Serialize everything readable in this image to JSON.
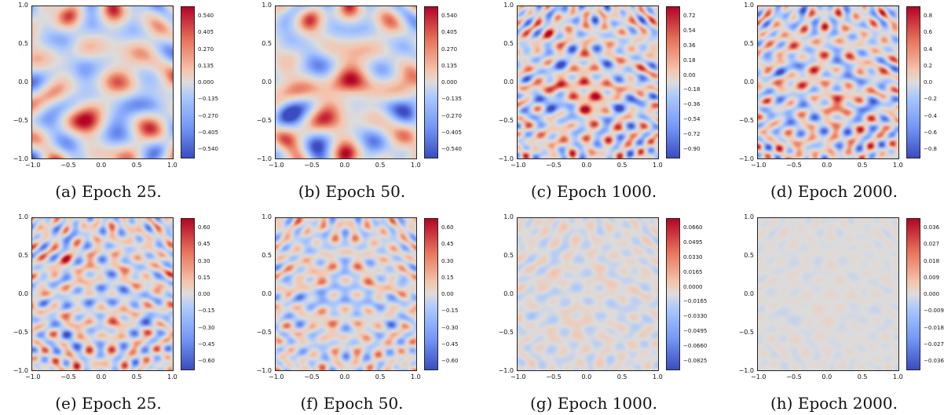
{
  "chart_data": [
    {
      "type": "heatmap",
      "caption": "(a) Epoch 25.",
      "xlim": [
        -1.0,
        1.0
      ],
      "ylim": [
        -1.0,
        1.0
      ],
      "xticks": [
        "−1.0",
        "−0.5",
        "0.0",
        "0.5",
        "1.0"
      ],
      "yticks": [
        "1.0",
        "0.5",
        "0.0",
        "−0.5",
        "−1.0"
      ],
      "colorbar_ticks": [
        "0.540",
        "0.405",
        "0.270",
        "0.135",
        "0.000",
        "−0.135",
        "−0.270",
        "−0.405",
        "−0.540"
      ],
      "colormap": "coolwarm",
      "intensity": 0.9
    },
    {
      "type": "heatmap",
      "caption": "(b) Epoch 50.",
      "xlim": [
        -1.0,
        1.0
      ],
      "ylim": [
        -1.0,
        1.0
      ],
      "xticks": [
        "−1.0",
        "−0.5",
        "0.0",
        "0.5",
        "1.0"
      ],
      "yticks": [
        "1.0",
        "0.5",
        "0.0",
        "−0.5",
        "−1.0"
      ],
      "colorbar_ticks": [
        "0.540",
        "0.405",
        "0.270",
        "0.135",
        "0.000",
        "−0.135",
        "−0.270",
        "−0.405",
        "−0.540"
      ],
      "colormap": "coolwarm",
      "intensity": 1.0
    },
    {
      "type": "heatmap",
      "caption": "(c) Epoch 1000.",
      "xlim": [
        -1.0,
        1.0
      ],
      "ylim": [
        -1.0,
        1.0
      ],
      "xticks": [
        "−1.0",
        "−0.5",
        "0.0",
        "0.5",
        "1.0"
      ],
      "yticks": [
        "1.0",
        "0.5",
        "0.0",
        "−0.5",
        "−1.0"
      ],
      "colorbar_ticks": [
        "0.72",
        "0.54",
        "0.36",
        "0.18",
        "0.00",
        "−0.18",
        "−0.36",
        "−0.54",
        "−0.72",
        "−0.90"
      ],
      "colormap": "coolwarm",
      "intensity": 0.9
    },
    {
      "type": "heatmap",
      "caption": "(d) Epoch 2000.",
      "xlim": [
        -1.0,
        1.0
      ],
      "ylim": [
        -1.0,
        1.0
      ],
      "xticks": [
        "−1.0",
        "−0.5",
        "0.0",
        "0.5",
        "1.0"
      ],
      "yticks": [
        "1.0",
        "0.5",
        "0.0",
        "−0.5",
        "−1.0"
      ],
      "colorbar_ticks": [
        "0.8",
        "0.6",
        "0.4",
        "0.2",
        "0.0",
        "−0.2",
        "−0.4",
        "−0.6",
        "−0.8"
      ],
      "colormap": "coolwarm",
      "intensity": 0.9
    },
    {
      "type": "heatmap",
      "caption": "(e) Epoch 25.",
      "xlim": [
        -1.0,
        1.0
      ],
      "ylim": [
        -1.0,
        1.0
      ],
      "xticks": [
        "−1.0",
        "−0.5",
        "0.0",
        "0.5",
        "1.0"
      ],
      "yticks": [
        "1.0",
        "0.5",
        "0.0",
        "−0.5",
        "−1.0"
      ],
      "colorbar_ticks": [
        "0.60",
        "0.45",
        "0.30",
        "0.15",
        "0.00",
        "−0.15",
        "−0.30",
        "−0.45",
        "−0.60"
      ],
      "colormap": "coolwarm",
      "intensity": 0.8
    },
    {
      "type": "heatmap",
      "caption": "(f) Epoch 50.",
      "xlim": [
        -1.0,
        1.0
      ],
      "ylim": [
        -1.0,
        1.0
      ],
      "xticks": [
        "−1.0",
        "−0.5",
        "0.0",
        "0.5",
        "1.0"
      ],
      "yticks": [
        "1.0",
        "0.5",
        "0.0",
        "−0.5",
        "−1.0"
      ],
      "colorbar_ticks": [
        "0.60",
        "0.45",
        "0.30",
        "0.15",
        "0.00",
        "−0.15",
        "−0.30",
        "−0.45",
        "−0.60"
      ],
      "colormap": "coolwarm",
      "intensity": 0.7
    },
    {
      "type": "heatmap",
      "caption": "(g) Epoch 1000.",
      "xlim": [
        -1.0,
        1.0
      ],
      "ylim": [
        -1.0,
        1.0
      ],
      "xticks": [
        "−1.0",
        "−0.5",
        "0.0",
        "0.5",
        "1.0"
      ],
      "yticks": [
        "1.0",
        "0.5",
        "0.0",
        "−0.5",
        "−1.0"
      ],
      "colorbar_ticks": [
        "0.0660",
        "0.0495",
        "0.0330",
        "0.0165",
        "0.0000",
        "−0.0165",
        "−0.0330",
        "−0.0495",
        "−0.0660",
        "−0.0825"
      ],
      "colormap": "coolwarm",
      "intensity": 0.3
    },
    {
      "type": "heatmap",
      "caption": "(h) Epoch 2000.",
      "xlim": [
        -1.0,
        1.0
      ],
      "ylim": [
        -1.0,
        1.0
      ],
      "xticks": [
        "−1.0",
        "−0.5",
        "0.0",
        "0.5",
        "1.0"
      ],
      "yticks": [
        "1.0",
        "0.5",
        "0.0",
        "−0.5",
        "−1.0"
      ],
      "colorbar_ticks": [
        "0.036",
        "0.027",
        "0.018",
        "0.009",
        "0.000",
        "−0.009",
        "−0.018",
        "−0.027",
        "−0.036"
      ],
      "colormap": "coolwarm",
      "intensity": 0.12
    }
  ]
}
